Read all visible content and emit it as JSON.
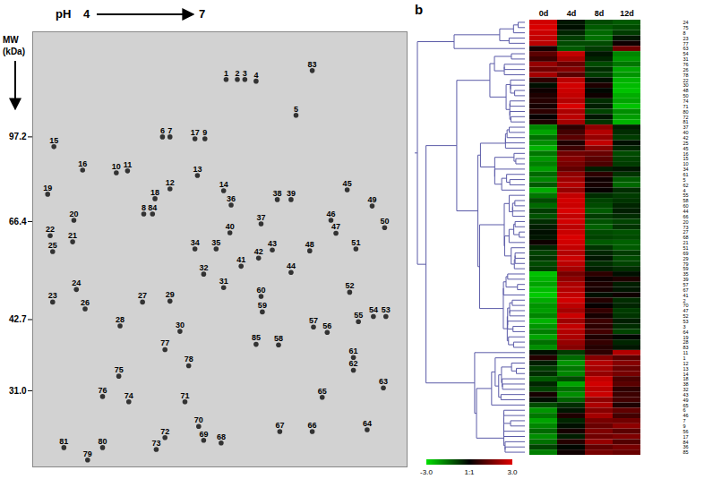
{
  "chart_data": [
    {
      "type": "scatter",
      "xlabel": "pH",
      "ylabel": "MW (kDa)",
      "log": "y",
      "xlim": [
        4,
        7
      ],
      "ylim": [
        22,
        156
      ],
      "yticks": [
        97.2,
        66.4,
        42.7,
        {
          "value": 31,
          "label": "31.0"
        }
      ],
      "tick_labels": "y",
      "labels": [
        "1",
        "2",
        "3",
        "4",
        "5",
        "6",
        "7",
        "17",
        "9",
        "15",
        "16",
        "10",
        "11",
        "13",
        "12",
        "14",
        "19",
        "18",
        "8",
        "84",
        "36",
        "38",
        "39",
        "45",
        "37",
        "20",
        "49",
        "46",
        "47",
        "50",
        "22",
        "21",
        "40",
        "34",
        "35",
        "43",
        "42",
        "41",
        "48",
        "51",
        "25",
        "44",
        "32",
        "31",
        "24",
        "23",
        "26",
        "27",
        "29",
        "60",
        "52",
        "54",
        "53",
        "28",
        "30",
        "59",
        "55",
        "57",
        "56",
        "85",
        "58",
        "77",
        "78",
        "61",
        "62",
        "75",
        "76",
        "74",
        "71",
        "65",
        "63",
        "70",
        "69",
        "72",
        "68",
        "67",
        "66",
        "64",
        "81",
        "80",
        "79",
        "73",
        "83"
      ],
      "x": [
        5.55,
        5.64,
        5.7,
        5.79,
        6.11,
        5.04,
        5.1,
        5.3,
        5.38,
        4.17,
        4.4,
        4.67,
        4.76,
        5.32,
        5.1,
        5.53,
        4.12,
        4.98,
        4.89,
        4.96,
        5.59,
        5.96,
        6.07,
        6.52,
        5.83,
        4.33,
        6.72,
        6.39,
        6.43,
        6.82,
        4.14,
        4.32,
        5.58,
        5.3,
        5.47,
        5.92,
        5.81,
        5.67,
        6.22,
        6.59,
        4.16,
        6.07,
        5.37,
        5.53,
        4.35,
        4.16,
        4.42,
        4.88,
        5.1,
        5.83,
        6.54,
        6.73,
        6.83,
        4.7,
        5.18,
        5.84,
        6.61,
        6.25,
        6.36,
        5.79,
        5.97,
        5.06,
        5.25,
        6.57,
        6.57,
        4.69,
        4.56,
        4.77,
        5.22,
        6.32,
        6.81,
        5.33,
        5.37,
        5.06,
        5.51,
        5.98,
        6.24,
        6.68,
        4.25,
        4.56,
        4.44,
        4.99,
        6.24
      ],
      "y": [
        125.9,
        125.9,
        125.9,
        124.9,
        107.1,
        97.2,
        97.2,
        96.4,
        96.4,
        93.0,
        83.7,
        82.7,
        83.4,
        81.7,
        76.9,
        76.3,
        75.1,
        73.6,
        68.7,
        68.7,
        71.5,
        73.3,
        73.3,
        76.6,
        65.7,
        66.8,
        71.2,
        66.8,
        63.0,
        64.6,
        62.3,
        60.6,
        63.1,
        58.7,
        58.7,
        58.4,
        56.3,
        54.3,
        58.2,
        58.7,
        58.0,
        52.8,
        52.4,
        49.3,
        48.9,
        46.2,
        44.8,
        46.2,
        46.4,
        47.4,
        48.3,
        43.3,
        43.3,
        41.5,
        40.5,
        44.2,
        42.3,
        41.3,
        40.3,
        38.2,
        38.1,
        37.3,
        34.7,
        36.0,
        34.0,
        33.1,
        30.2,
        29.5,
        29.5,
        30.1,
        31.4,
        26.4,
        24.8,
        25.1,
        24.5,
        25.8,
        25.8,
        26.0,
        24.0,
        24.0,
        22.7,
        23.8,
        131.0
      ]
    },
    {
      "type": "heatmap",
      "title": "b",
      "categories": [
        "0d",
        "4d",
        "8d",
        "12d"
      ],
      "rows": [
        "24",
        "75",
        "8",
        "23",
        "77",
        "63",
        "54",
        "31",
        "76",
        "26",
        "78",
        "22",
        "30",
        "48",
        "50",
        "74",
        "71",
        "80",
        "72",
        "81",
        "37",
        "40",
        "42",
        "25",
        "45",
        "16",
        "15",
        "10",
        "34",
        "61",
        "5",
        "62",
        "4",
        "55",
        "58",
        "60",
        "44",
        "66",
        "20",
        "73",
        "27",
        "68",
        "21",
        "51",
        "69",
        "29",
        "79",
        "59",
        "35",
        "39",
        "57",
        "67",
        "41",
        "2",
        "70",
        "47",
        "52",
        "53",
        "3",
        "64",
        "19",
        "28",
        "83",
        "11",
        "1",
        "12",
        "13",
        "14",
        "18",
        "38",
        "32",
        "43",
        "49",
        "65",
        "6",
        "46",
        "7",
        "9",
        "56",
        "17",
        "84",
        "36",
        "85"
      ],
      "cells": [
        [
          2.8,
          -0.3,
          -1.0,
          -1.2
        ],
        [
          2.9,
          -0.2,
          -1.2,
          -1.0
        ],
        [
          2.7,
          -0.5,
          -1.4,
          -0.8
        ],
        [
          2.6,
          -0.8,
          -1.5,
          -0.3
        ],
        [
          2.5,
          -1.0,
          -1.0,
          0.2
        ],
        [
          0.3,
          -1.2,
          -0.8,
          1.5
        ],
        [
          1.2,
          2.6,
          -0.3,
          -1.8
        ],
        [
          0.8,
          2.2,
          -0.5,
          -2.0
        ],
        [
          2.0,
          1.4,
          -1.0,
          -1.6
        ],
        [
          1.5,
          1.8,
          -0.6,
          -2.2
        ],
        [
          2.2,
          1.2,
          -0.8,
          -2.0
        ],
        [
          0.6,
          2.5,
          -0.2,
          -2.4
        ],
        [
          -0.2,
          2.8,
          0.4,
          -2.5
        ],
        [
          0.2,
          2.7,
          -0.1,
          -2.6
        ],
        [
          0.4,
          2.6,
          0.2,
          -2.3
        ],
        [
          0.5,
          2.4,
          -0.6,
          -2.2
        ],
        [
          0.3,
          2.9,
          -0.4,
          -2.6
        ],
        [
          0.6,
          2.3,
          -0.9,
          -1.9
        ],
        [
          0.1,
          2.5,
          -0.3,
          -2.1
        ],
        [
          0.4,
          2.2,
          -0.7,
          -2.4
        ],
        [
          -1.8,
          0.6,
          1.9,
          -0.4
        ],
        [
          -2.2,
          0.9,
          2.4,
          -0.6
        ],
        [
          -1.5,
          1.2,
          2.0,
          -0.8
        ],
        [
          -1.9,
          0.4,
          2.6,
          -0.2
        ],
        [
          -2.4,
          0.8,
          1.8,
          -0.5
        ],
        [
          -1.6,
          1.5,
          1.4,
          -1.0
        ],
        [
          -2.0,
          1.8,
          1.2,
          -0.9
        ],
        [
          -1.7,
          1.6,
          1.0,
          -0.8
        ],
        [
          -2.1,
          1.3,
          -0.4,
          -0.3
        ],
        [
          -1.4,
          1.9,
          0.6,
          -0.7
        ],
        [
          -1.8,
          2.1,
          0.2,
          -1.2
        ],
        [
          -1.2,
          2.4,
          0.3,
          -1.4
        ],
        [
          -2.3,
          2.0,
          0.1,
          -0.6
        ],
        [
          -1.6,
          2.6,
          -0.6,
          -0.8
        ],
        [
          -1.0,
          2.8,
          -0.9,
          -0.7
        ],
        [
          -1.4,
          2.7,
          -1.0,
          -0.5
        ],
        [
          -0.8,
          2.9,
          -1.2,
          -0.4
        ],
        [
          -1.1,
          2.6,
          -0.8,
          -0.6
        ],
        [
          -0.6,
          2.8,
          -1.1,
          -0.9
        ],
        [
          -0.4,
          2.5,
          -1.3,
          -0.7
        ],
        [
          -0.2,
          2.7,
          -1.0,
          -1.1
        ],
        [
          -0.3,
          2.9,
          -0.9,
          -1.0
        ],
        [
          0.2,
          2.8,
          -1.2,
          -1.3
        ],
        [
          -0.5,
          2.6,
          -0.7,
          -1.2
        ],
        [
          -0.9,
          2.4,
          -0.5,
          -0.8
        ],
        [
          -0.7,
          2.7,
          -0.3,
          -1.0
        ],
        [
          -1.0,
          2.5,
          -0.6,
          -0.9
        ],
        [
          -0.8,
          2.2,
          -0.4,
          -0.6
        ],
        [
          -2.6,
          1.6,
          0.6,
          -0.2
        ],
        [
          -2.4,
          1.9,
          0.2,
          0.4
        ],
        [
          -2.2,
          2.3,
          0.4,
          -0.4
        ],
        [
          -2.5,
          2.4,
          0.3,
          -0.3
        ],
        [
          -2.7,
          2.6,
          -0.2,
          0.2
        ],
        [
          -2.3,
          2.8,
          0.5,
          -0.6
        ],
        [
          -2.0,
          2.5,
          0.1,
          -0.5
        ],
        [
          -2.1,
          2.2,
          0.7,
          -0.8
        ],
        [
          -1.8,
          2.7,
          0.3,
          -0.7
        ],
        [
          -2.4,
          2.1,
          0.8,
          -0.4
        ],
        [
          -2.0,
          2.6,
          0.6,
          -0.6
        ],
        [
          -1.7,
          2.4,
          0.9,
          -0.9
        ],
        [
          -2.2,
          2.3,
          0.4,
          -0.1
        ],
        [
          -1.5,
          2.0,
          0.7,
          -0.5
        ],
        [
          -1.9,
          1.8,
          0.5,
          -0.3
        ],
        [
          -0.2,
          -0.8,
          0.6,
          2.4
        ],
        [
          0.5,
          -1.4,
          1.8,
          1.2
        ],
        [
          -0.4,
          -2.0,
          2.4,
          1.8
        ],
        [
          -0.8,
          -1.6,
          2.2,
          1.4
        ],
        [
          -0.6,
          -1.8,
          2.0,
          1.6
        ],
        [
          -1.2,
          -1.0,
          2.6,
          1.0
        ],
        [
          -0.5,
          -2.2,
          2.8,
          1.2
        ],
        [
          -0.9,
          -1.5,
          2.5,
          0.6
        ],
        [
          0.3,
          -1.9,
          2.7,
          0.8
        ],
        [
          -0.2,
          -1.3,
          1.9,
          0.9
        ],
        [
          -1.0,
          -0.6,
          2.3,
          0.4
        ],
        [
          -2.0,
          -0.3,
          1.8,
          1.3
        ],
        [
          -1.6,
          0.4,
          2.2,
          0.9
        ],
        [
          -2.2,
          -0.5,
          1.6,
          1.5
        ],
        [
          -1.8,
          -0.2,
          1.4,
          1.9
        ],
        [
          -1.4,
          0.3,
          1.7,
          1.2
        ],
        [
          -1.9,
          -0.4,
          1.5,
          1.7
        ],
        [
          -1.5,
          0.5,
          2.0,
          1.1
        ],
        [
          -0.9,
          -0.1,
          1.3,
          1.6
        ],
        [
          -1.7,
          0.2,
          1.6,
          1.4
        ]
      ],
      "colorbar": {
        "range": [
          -3,
          3
        ],
        "ticks": [
          {
            "value": -3,
            "label": "-3.0"
          },
          {
            "value": 0,
            "label": "1:1"
          },
          {
            "value": 3,
            "label": "3.0"
          }
        ],
        "colors": [
          "#00e000",
          "#000000",
          "#e00000"
        ]
      }
    }
  ]
}
